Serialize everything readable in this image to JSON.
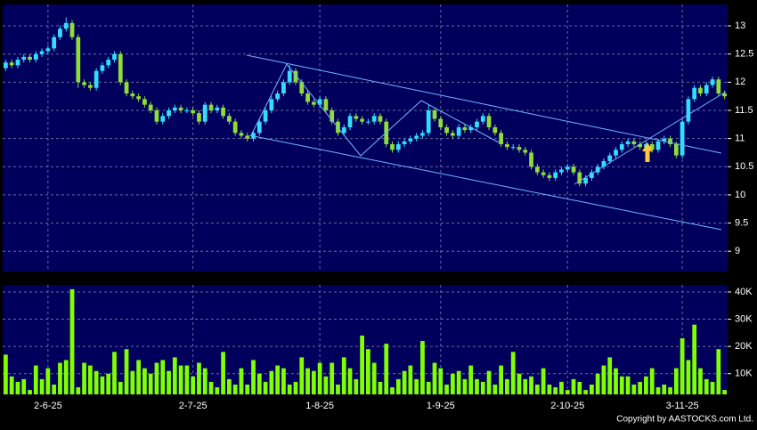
{
  "chart_data": {
    "type": "candlestick",
    "categories": [
      null,
      null,
      null,
      null,
      null,
      null,
      null,
      "2-6-25",
      null,
      null,
      null,
      null,
      null,
      null,
      null,
      null,
      null,
      null,
      null,
      null,
      null,
      null,
      null,
      null,
      null,
      null,
      null,
      null,
      null,
      null,
      null,
      "2-7-25",
      null,
      null,
      null,
      null,
      null,
      null,
      null,
      null,
      null,
      null,
      null,
      null,
      null,
      null,
      null,
      null,
      null,
      null,
      null,
      null,
      "1-8-25",
      null,
      null,
      null,
      null,
      null,
      null,
      null,
      null,
      null,
      null,
      null,
      null,
      null,
      null,
      null,
      null,
      null,
      null,
      null,
      "1-9-25",
      null,
      null,
      null,
      null,
      null,
      null,
      null,
      null,
      null,
      null,
      null,
      null,
      null,
      null,
      null,
      null,
      null,
      null,
      null,
      null,
      "2-10-25",
      null,
      null,
      null,
      null,
      null,
      null,
      null,
      null,
      null,
      null,
      null,
      null,
      null,
      null,
      null,
      null,
      null,
      null,
      "3-11-25",
      null,
      null,
      null,
      null,
      null,
      null,
      null
    ],
    "open": [
      12.25,
      12.35,
      12.3,
      12.4,
      12.45,
      12.4,
      12.5,
      12.55,
      12.6,
      12.8,
      12.95,
      13.05,
      12.8,
      12.0,
      11.95,
      11.9,
      12.2,
      12.3,
      12.4,
      12.5,
      12.0,
      11.8,
      11.75,
      11.7,
      11.6,
      11.5,
      11.3,
      11.4,
      11.5,
      11.55,
      11.5,
      11.5,
      11.45,
      11.3,
      11.6,
      11.5,
      11.55,
      11.4,
      11.3,
      11.1,
      11.05,
      11.0,
      11.1,
      11.3,
      11.5,
      11.7,
      11.8,
      12.0,
      12.2,
      12.0,
      11.8,
      11.65,
      11.6,
      11.7,
      11.5,
      11.3,
      11.1,
      11.2,
      11.4,
      11.35,
      11.3,
      11.3,
      11.4,
      11.3,
      10.9,
      10.8,
      10.9,
      10.95,
      11.0,
      11.05,
      11.1,
      11.5,
      11.35,
      11.2,
      11.1,
      11.05,
      11.2,
      11.15,
      11.2,
      11.3,
      11.4,
      11.2,
      11.1,
      10.9,
      10.85,
      10.85,
      10.8,
      10.75,
      10.5,
      10.4,
      10.35,
      10.3,
      10.4,
      10.45,
      10.5,
      10.4,
      10.2,
      10.3,
      10.4,
      10.5,
      10.6,
      10.7,
      10.8,
      10.9,
      10.95,
      10.9,
      10.85,
      10.9,
      10.8,
      10.95,
      11.0,
      10.9,
      10.7,
      11.3,
      11.7,
      11.9,
      11.8,
      11.95,
      12.05,
      11.8
    ],
    "high": [
      12.4,
      12.4,
      12.45,
      12.5,
      12.5,
      12.55,
      12.6,
      12.65,
      12.85,
      13.0,
      13.15,
      13.1,
      12.85,
      12.05,
      12.0,
      12.25,
      12.35,
      12.45,
      12.55,
      12.55,
      12.05,
      11.85,
      11.8,
      11.75,
      11.65,
      11.55,
      11.45,
      11.55,
      11.6,
      11.6,
      11.55,
      11.55,
      11.5,
      11.65,
      11.65,
      11.6,
      11.6,
      11.45,
      11.35,
      11.15,
      11.1,
      11.15,
      11.35,
      11.55,
      11.75,
      11.85,
      12.05,
      12.3,
      12.25,
      12.05,
      11.85,
      11.7,
      11.75,
      11.75,
      11.55,
      11.35,
      11.25,
      11.45,
      11.45,
      11.4,
      11.35,
      11.45,
      11.45,
      11.35,
      10.95,
      10.95,
      11.0,
      11.05,
      11.1,
      11.15,
      11.6,
      11.55,
      11.4,
      11.25,
      11.15,
      11.25,
      11.25,
      11.25,
      11.35,
      11.45,
      11.45,
      11.25,
      11.15,
      10.95,
      10.9,
      10.9,
      10.85,
      10.8,
      10.55,
      10.45,
      10.4,
      10.45,
      10.5,
      10.55,
      10.55,
      10.45,
      10.35,
      10.45,
      10.55,
      10.65,
      10.75,
      10.85,
      10.95,
      11.0,
      11.0,
      10.95,
      10.95,
      10.95,
      11.0,
      11.05,
      11.05,
      10.95,
      11.35,
      11.75,
      11.95,
      11.95,
      12.0,
      12.1,
      12.1,
      11.85
    ],
    "low": [
      12.2,
      12.25,
      12.25,
      12.35,
      12.35,
      12.35,
      12.45,
      12.5,
      12.55,
      12.75,
      12.9,
      12.75,
      11.9,
      11.9,
      11.85,
      11.85,
      12.15,
      12.25,
      12.35,
      11.95,
      11.75,
      11.7,
      11.65,
      11.55,
      11.45,
      11.25,
      11.25,
      11.35,
      11.45,
      11.45,
      11.45,
      11.4,
      11.25,
      11.25,
      11.45,
      11.45,
      11.35,
      11.25,
      11.05,
      11.0,
      10.95,
      10.95,
      11.05,
      11.25,
      11.45,
      11.65,
      11.75,
      11.95,
      11.95,
      11.75,
      11.6,
      11.55,
      11.55,
      11.45,
      11.25,
      11.05,
      11.05,
      11.15,
      11.3,
      11.25,
      11.25,
      11.25,
      11.25,
      10.85,
      10.75,
      10.75,
      10.85,
      10.9,
      10.95,
      11.0,
      11.05,
      11.3,
      11.15,
      11.05,
      11.0,
      11.0,
      11.1,
      11.1,
      11.15,
      11.25,
      11.15,
      11.05,
      10.85,
      10.8,
      10.8,
      10.75,
      10.7,
      10.45,
      10.35,
      10.3,
      10.25,
      10.25,
      10.35,
      10.4,
      10.35,
      10.15,
      10.15,
      10.25,
      10.35,
      10.45,
      10.55,
      10.65,
      10.75,
      10.85,
      10.85,
      10.8,
      10.8,
      10.75,
      10.75,
      10.9,
      10.85,
      10.65,
      10.65,
      11.25,
      11.65,
      11.75,
      11.75,
      11.9,
      11.75,
      11.7
    ],
    "close": [
      12.35,
      12.3,
      12.4,
      12.45,
      12.4,
      12.5,
      12.55,
      12.6,
      12.8,
      12.95,
      13.05,
      12.8,
      12.0,
      11.95,
      11.9,
      12.2,
      12.3,
      12.4,
      12.5,
      12.0,
      11.8,
      11.75,
      11.7,
      11.6,
      11.5,
      11.3,
      11.4,
      11.5,
      11.55,
      11.5,
      11.5,
      11.45,
      11.3,
      11.6,
      11.5,
      11.55,
      11.4,
      11.3,
      11.1,
      11.05,
      11.0,
      11.1,
      11.3,
      11.5,
      11.7,
      11.8,
      12.0,
      12.2,
      12.0,
      11.8,
      11.65,
      11.6,
      11.7,
      11.5,
      11.3,
      11.1,
      11.2,
      11.4,
      11.35,
      11.3,
      11.3,
      11.4,
      11.3,
      10.9,
      10.8,
      10.9,
      10.95,
      11.0,
      11.05,
      11.1,
      11.5,
      11.35,
      11.2,
      11.1,
      11.05,
      11.2,
      11.15,
      11.2,
      11.3,
      11.4,
      11.2,
      11.1,
      10.9,
      10.85,
      10.85,
      10.8,
      10.75,
      10.5,
      10.4,
      10.35,
      10.3,
      10.4,
      10.45,
      10.5,
      10.4,
      10.2,
      10.3,
      10.4,
      10.5,
      10.6,
      10.7,
      10.8,
      10.9,
      10.95,
      10.9,
      10.85,
      10.9,
      10.8,
      10.95,
      11.0,
      10.9,
      10.7,
      11.3,
      11.7,
      11.9,
      11.8,
      11.95,
      12.05,
      11.8,
      11.75
    ],
    "up_color": "#33ddff",
    "down_color": "#8fdc3a",
    "ylim": [
      8.64,
      13.38
    ],
    "yticks": [
      9,
      9.5,
      10,
      10.5,
      11,
      11.5,
      12,
      12.5,
      13
    ],
    "grid": true,
    "volume": {
      "type": "bar",
      "color": "#7fff00",
      "values": [
        17000,
        9000,
        7000,
        8000,
        4000,
        13000,
        8000,
        12000,
        6000,
        14000,
        15000,
        41000,
        5000,
        14000,
        13000,
        11000,
        9000,
        10000,
        18000,
        7000,
        19000,
        11000,
        15000,
        12000,
        10000,
        14000,
        15000,
        11000,
        16000,
        13000,
        13000,
        9000,
        14000,
        12000,
        7000,
        5000,
        18000,
        8000,
        6000,
        12000,
        6000,
        15000,
        10000,
        7000,
        11000,
        13000,
        12000,
        6000,
        7000,
        16000,
        12000,
        11000,
        14000,
        9000,
        14000,
        6000,
        16000,
        12000,
        8000,
        24000,
        19000,
        14000,
        7000,
        21000,
        5000,
        8000,
        11000,
        13000,
        8000,
        22000,
        7000,
        14000,
        12000,
        6000,
        10000,
        11000,
        8000,
        13000,
        8000,
        7000,
        11000,
        6000,
        13000,
        8000,
        18000,
        10000,
        8000,
        9000,
        6000,
        12000,
        6000,
        5000,
        7000,
        4000,
        8000,
        7000,
        4000,
        6000,
        10000,
        13000,
        16000,
        12000,
        9000,
        9000,
        6000,
        7000,
        9000,
        12000,
        5000,
        6000,
        5000,
        12000,
        23000,
        15000,
        28000,
        12000,
        8000,
        7000,
        19000,
        4000
      ],
      "ylim": [
        2400,
        42600
      ],
      "yticks": [
        {
          "value": 10000,
          "label": "10K"
        },
        {
          "value": 20000,
          "label": "20K"
        },
        {
          "value": 30000,
          "label": "30K"
        },
        {
          "value": 40000,
          "label": "40K"
        }
      ]
    },
    "copyright": "Copyright by AASTOCKS.com Ltd."
  }
}
